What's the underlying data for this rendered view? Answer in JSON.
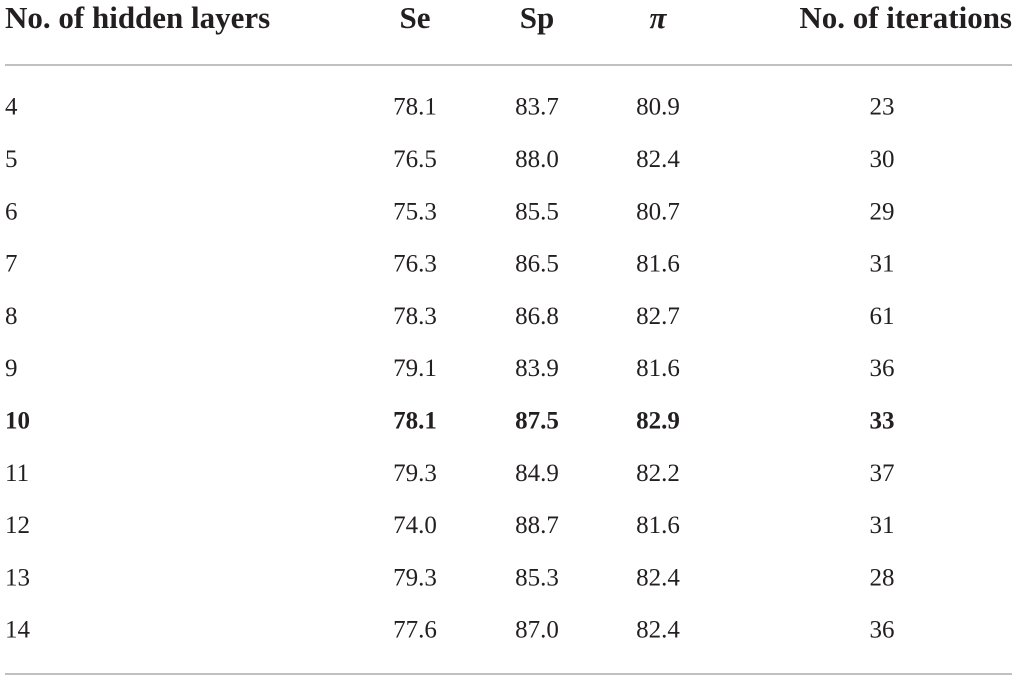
{
  "table": {
    "header": [
      "No. of hidden layers",
      "Se",
      "Sp",
      "π",
      "No. of iterations"
    ],
    "rows": [
      [
        "4",
        "78.1",
        "83.7",
        "80.9",
        "23"
      ],
      [
        "5",
        "76.5",
        "88.0",
        "82.4",
        "30"
      ],
      [
        "6",
        "75.3",
        "85.5",
        "80.7",
        "29"
      ],
      [
        "7",
        "76.3",
        "86.5",
        "81.6",
        "31"
      ],
      [
        "8",
        "78.3",
        "86.8",
        "82.7",
        "61"
      ],
      [
        "9",
        "79.1",
        "83.9",
        "81.6",
        "36"
      ],
      [
        "10",
        "78.1",
        "87.5",
        "82.9",
        "33"
      ],
      [
        "11",
        "79.3",
        "84.9",
        "82.2",
        "37"
      ],
      [
        "12",
        "74.0",
        "88.7",
        "81.6",
        "31"
      ],
      [
        "13",
        "79.3",
        "85.3",
        "82.4",
        "28"
      ],
      [
        "14",
        "77.6",
        "87.0",
        "82.4",
        "36"
      ]
    ]
  }
}
